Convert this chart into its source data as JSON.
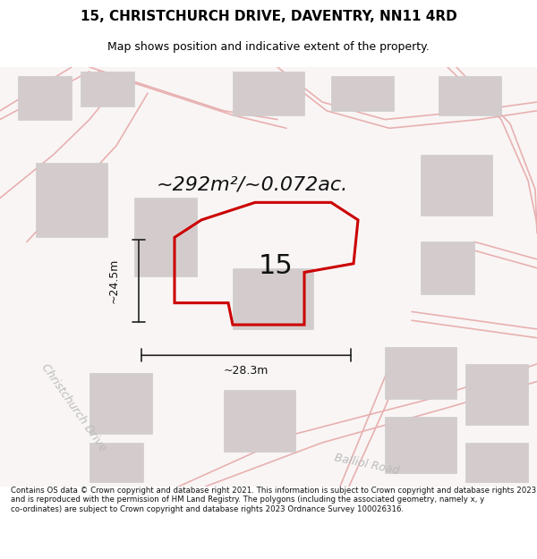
{
  "title": "15, CHRISTCHURCH DRIVE, DAVENTRY, NN11 4RD",
  "subtitle": "Map shows position and indicative extent of the property.",
  "area_text": "~292m²/~0.072ac.",
  "label_15": "15",
  "dim_width": "~28.3m",
  "dim_height": "~24.5m",
  "road_label_1": "Christchurch Drive",
  "road_label_2": "Balliol Road",
  "footer": "Contains OS data © Crown copyright and database right 2021. This information is subject to Crown copyright and database rights 2023 and is reproduced with the permission of HM Land Registry. The polygons (including the associated geometry, namely x, y co-ordinates) are subject to Crown copyright and database rights 2023 Ordnance Survey 100026316.",
  "bg_color": "#f5f0f0",
  "map_bg": "#f8f4f4",
  "plot_color_fill": "none",
  "plot_color_edge": "#cc0000",
  "road_color": "#e8b0b0",
  "building_color": "#d8d0d0",
  "title_color": "#000000",
  "road_label_color": "#aaaaaa",
  "dim_color": "#222222"
}
